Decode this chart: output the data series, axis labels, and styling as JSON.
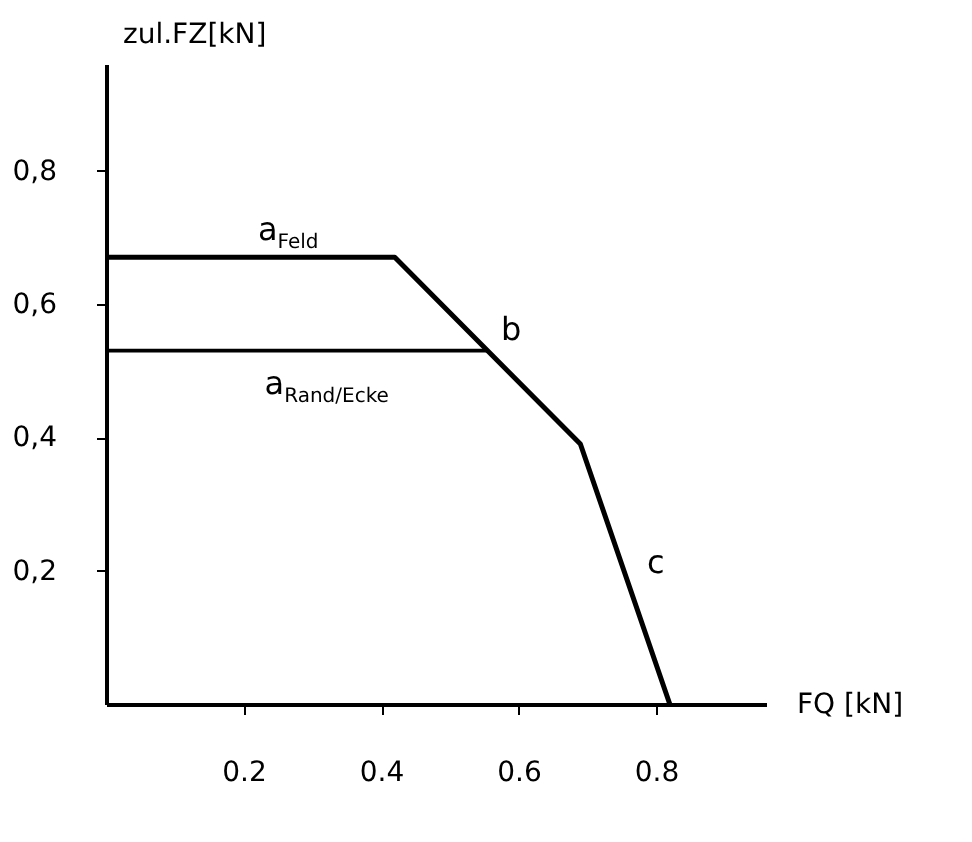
{
  "chart_data": {
    "type": "line",
    "xlabel": "FQ [kN]",
    "ylabel": "zul.FZ[kN]",
    "xlim": [
      0,
      0.96
    ],
    "ylim": [
      0,
      0.96
    ],
    "xticks": [
      0.2,
      0.4,
      0.6,
      0.8
    ],
    "yticks": [
      {
        "value": 0.2,
        "label": "0,2"
      },
      {
        "value": 0.4,
        "label": "0,4"
      },
      {
        "value": 0.6,
        "label": "0,6"
      },
      {
        "value": 0.8,
        "label": "0,8"
      }
    ],
    "grid": false,
    "marker": "none",
    "line_style": "solid",
    "series": [
      {
        "color": "#000000",
        "x": [
          0,
          0.42,
          0.69,
          0.82
        ],
        "values": [
          0.67,
          0.67,
          0.39,
          0
        ]
      },
      {
        "color": "#000000",
        "x": [
          0,
          0.555
        ],
        "values": [
          0.53,
          0.53
        ]
      }
    ],
    "annotations": [
      "a$_{Feld}$",
      "b",
      "a$_{Rand/Ecke}$",
      "c"
    ]
  }
}
